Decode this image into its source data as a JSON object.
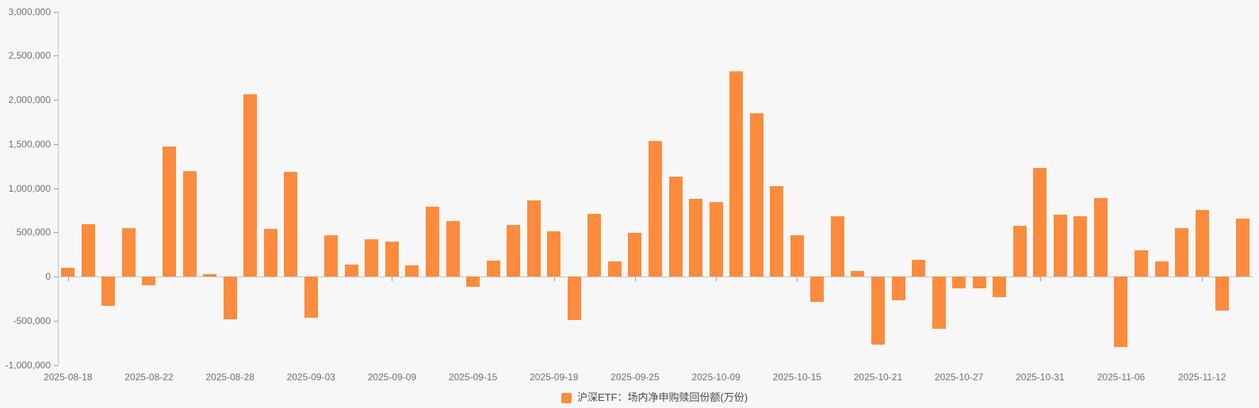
{
  "chart_data": {
    "type": "bar",
    "title": "",
    "legend_position": "bottom-center",
    "grid": false,
    "unit": "万份",
    "ylim": [
      -1000000,
      3000000
    ],
    "y_ticks": [
      3000000,
      2500000,
      2000000,
      1500000,
      1000000,
      500000,
      0,
      -500000,
      -1000000
    ],
    "x_label_indices": [
      0,
      4,
      8,
      12,
      16,
      20,
      24,
      28,
      32,
      36,
      40,
      44,
      48,
      52,
      56
    ],
    "x": [
      "2025-08-18",
      "2025-08-19",
      "2025-08-20",
      "2025-08-21",
      "2025-08-22",
      "2025-08-25",
      "2025-08-26",
      "2025-08-27",
      "2025-08-28",
      "2025-08-29",
      "2025-09-01",
      "2025-09-02",
      "2025-09-03",
      "2025-09-04",
      "2025-09-05",
      "2025-09-08",
      "2025-09-09",
      "2025-09-10",
      "2025-09-11",
      "2025-09-12",
      "2025-09-15",
      "2025-09-16",
      "2025-09-17",
      "2025-09-18",
      "2025-09-19",
      "2025-09-22",
      "2025-09-23",
      "2025-09-24",
      "2025-09-25",
      "2025-09-26",
      "2025-09-29",
      "2025-09-30",
      "2025-10-09",
      "2025-10-10",
      "2025-10-13",
      "2025-10-14",
      "2025-10-15",
      "2025-10-16",
      "2025-10-17",
      "2025-10-20",
      "2025-10-21",
      "2025-10-22",
      "2025-10-23",
      "2025-10-24",
      "2025-10-27",
      "2025-10-28",
      "2025-10-29",
      "2025-10-30",
      "2025-10-31",
      "2025-11-03",
      "2025-11-04",
      "2025-11-05",
      "2025-11-06",
      "2025-11-07",
      "2025-11-10",
      "2025-11-11",
      "2025-11-12",
      "2025-11-13",
      "2025-11-14"
    ],
    "series": [
      {
        "name": "沪深ETF：场内净申购赎回份额(万份)",
        "color": "#fc8b3d",
        "values": [
          100000,
          590000,
          -330000,
          545000,
          -95000,
          1470000,
          1190000,
          25000,
          -485000,
          2060000,
          535000,
          1185000,
          -470000,
          470000,
          135000,
          420000,
          395000,
          130000,
          790000,
          625000,
          -115000,
          180000,
          585000,
          860000,
          515000,
          -490000,
          705000,
          170000,
          490000,
          1535000,
          1130000,
          880000,
          845000,
          2325000,
          1845000,
          1020000,
          470000,
          -290000,
          685000,
          65000,
          -775000,
          -270000,
          190000,
          -590000,
          -135000,
          -135000,
          -235000,
          570000,
          1230000,
          700000,
          680000,
          885000,
          -795000,
          295000,
          170000,
          550000,
          755000,
          -390000,
          655000
        ]
      }
    ],
    "colors": {
      "background": "#f7f7f7",
      "bar": "#fc8b3d",
      "axis_line": "#c6c6c6",
      "tick": "#9a9a9a",
      "axis_label": "#6e7079",
      "legend_text": "#4a4a4a"
    }
  }
}
